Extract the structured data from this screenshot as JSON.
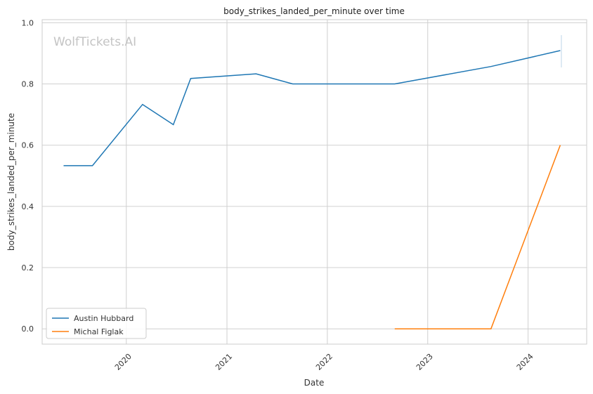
{
  "chart_data": {
    "type": "line",
    "title": "body_strikes_landed_per_minute over time",
    "xlabel": "Date",
    "ylabel": "body_strikes_landed_per_minute",
    "watermark": "WolfTickets.AI",
    "x_ticks": [
      "2020",
      "2021",
      "2022",
      "2023",
      "2024"
    ],
    "y_ticks": [
      "0.0",
      "0.2",
      "0.4",
      "0.6",
      "0.8",
      "1.0"
    ],
    "xlim": [
      "2019-03-01",
      "2024-08-01"
    ],
    "ylim": [
      -0.05,
      1.01
    ],
    "grid": true,
    "legend_position": "lower-left",
    "series": [
      {
        "name": "Austin Hubbard",
        "color": "#1f77b4",
        "points": [
          {
            "x": "2019-05-18",
            "y": 0.533
          },
          {
            "x": "2019-08-31",
            "y": 0.533
          },
          {
            "x": "2020-02-29",
            "y": 0.733
          },
          {
            "x": "2020-06-20",
            "y": 0.667
          },
          {
            "x": "2020-08-22",
            "y": 0.818
          },
          {
            "x": "2021-04-17",
            "y": 0.833
          },
          {
            "x": "2021-08-28",
            "y": 0.8
          },
          {
            "x": "2022-09-03",
            "y": 0.8
          },
          {
            "x": "2023-08-19",
            "y": 0.857
          },
          {
            "x": "2024-04-27",
            "y": 0.909
          }
        ]
      },
      {
        "name": "Michal Figlak",
        "color": "#ff7f0e",
        "points": [
          {
            "x": "2022-09-03",
            "y": 0.0
          },
          {
            "x": "2023-08-19",
            "y": 0.0
          },
          {
            "x": "2024-04-27",
            "y": 0.6
          }
        ]
      }
    ]
  }
}
